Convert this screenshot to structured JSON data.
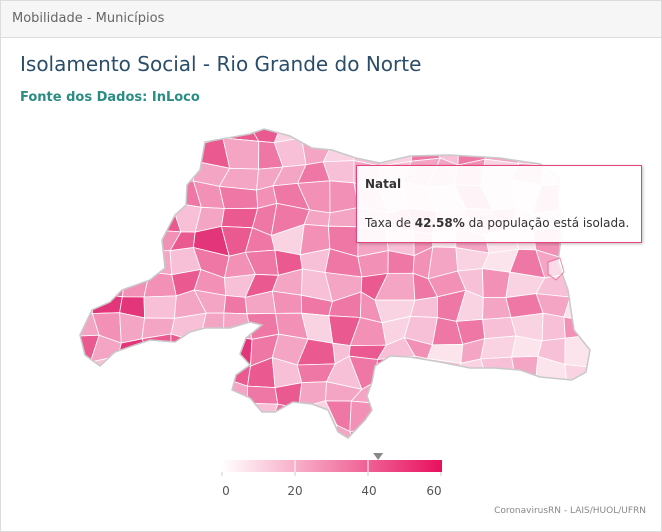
{
  "panel": {
    "title": "Mobilidade - Municípios"
  },
  "map": {
    "title": "Isolamento Social - Rio Grande do Norte",
    "subtitle": "Fonte dos Dados: InLoco",
    "region": "Rio Grande do Norte",
    "fill_palette": [
      "#e3357a",
      "#ea5a90",
      "#ef77a5",
      "#f390b6",
      "#f5a5c4",
      "#f8c0d6",
      "#fad3e2",
      "#fce4ed"
    ],
    "highlight_color": "#e8437c"
  },
  "tooltip": {
    "municipality": "Natal",
    "prefix": "Taxa de",
    "value": "42.58%",
    "suffix": "da população está isolada."
  },
  "legend": {
    "min": 0,
    "max": 60,
    "ticks": [
      "0",
      "20",
      "40",
      "60"
    ],
    "marker_value": 42.58,
    "color_start": "#ffffff",
    "color_end": "#e8105e"
  },
  "credits": "CoronavirusRN - LAIS/HUOL/UFRN"
}
